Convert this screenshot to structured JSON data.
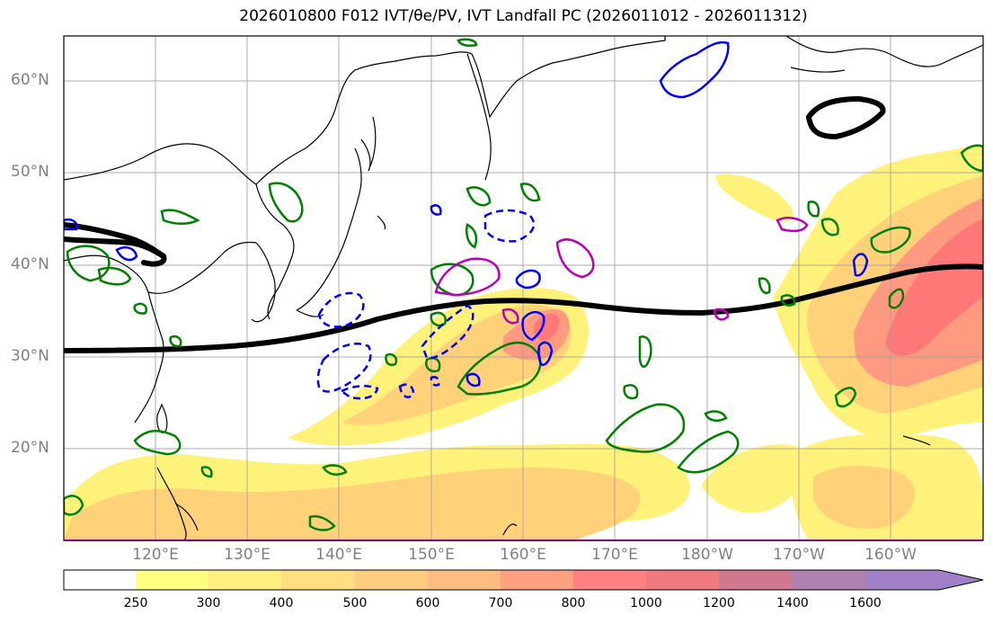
{
  "title": "2026010800 F012 IVT/θe/PV, IVT Landfall PC (2026011012 - 2026011312)",
  "lat_labels": [
    "60°N",
    "50°N",
    "40°N",
    "30°N",
    "20°N"
  ],
  "lon_labels": [
    "120°E",
    "130°E",
    "140°E",
    "150°E",
    "160°E",
    "170°E",
    "180°W",
    "170°W",
    "160°W"
  ],
  "colorbar": {
    "levels": [
      "250",
      "300",
      "400",
      "500",
      "600",
      "700",
      "800",
      "1000",
      "1200",
      "1400",
      "1600"
    ],
    "colors": [
      "#ffffff",
      "#ffff80",
      "#ffee80",
      "#ffdd80",
      "#ffcc80",
      "#ffbb80",
      "#ffa080",
      "#ff8080",
      "#f07880",
      "#d07890",
      "#b080b0",
      "#a080c8"
    ]
  },
  "contour_colors": {
    "ivt_fill_low": "#fff27a",
    "ivt_fill_mid": "#ffd27a",
    "ivt_fill_high": "#ff9a80",
    "ivt_fill_max": "#ff7878",
    "theta_e": "#008000",
    "pv_positive": "#0000ff",
    "pv_negative": "#0000ff",
    "magenta_contour": "#bb00bb",
    "landfall_pc": "#000000"
  }
}
